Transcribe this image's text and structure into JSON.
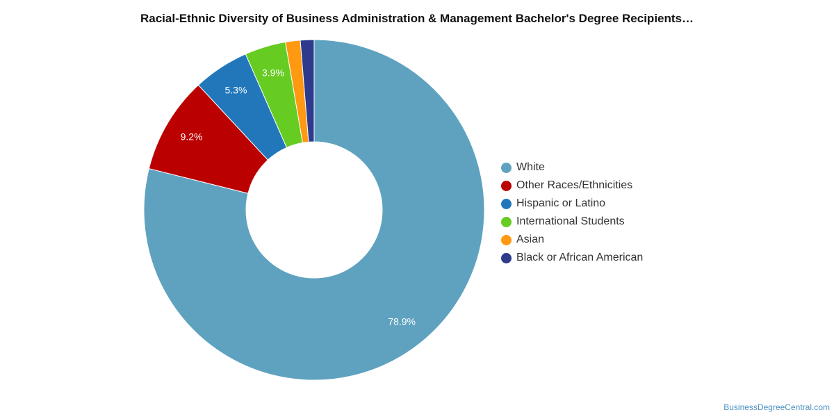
{
  "chart_data": {
    "type": "pie",
    "title": "Racial-Ethnic Diversity of Business Administration & Management Bachelor's Degree Recipients…",
    "categories": [
      "White",
      "Other Races/Ethnicities",
      "Hispanic or Latino",
      "International Students",
      "Asian",
      "Black or African American"
    ],
    "values": [
      78.9,
      9.2,
      5.3,
      3.9,
      1.4,
      1.3
    ],
    "data_labels": [
      "78.9%",
      "9.2%",
      "5.3%",
      "3.9%",
      "",
      ""
    ],
    "colors": [
      "#5fa2c0",
      "#bb0000",
      "#2277bb",
      "#66cc22",
      "#ff9911",
      "#2e3a8c"
    ],
    "donut": true,
    "legend_position": "right"
  },
  "credit": "BusinessDegreeCentral.com"
}
